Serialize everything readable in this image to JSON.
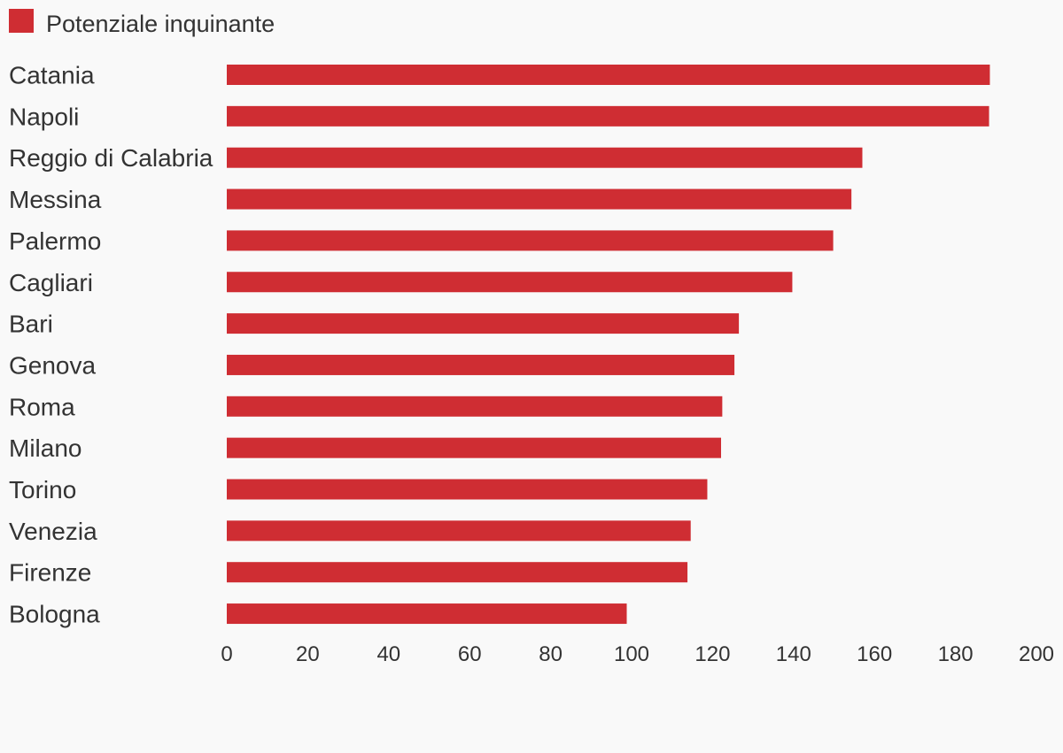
{
  "chart_data": {
    "type": "bar",
    "orientation": "horizontal",
    "categories": [
      "Catania",
      "Napoli",
      "Reggio di Calabria",
      "Messina",
      "Palermo",
      "Cagliari",
      "Bari",
      "Genova",
      "Roma",
      "Milano",
      "Torino",
      "Venezia",
      "Firenze",
      "Bologna"
    ],
    "series": [
      {
        "name": "Potenziale inquinante",
        "color": "#cf2d33",
        "values": [
          188.5,
          188.3,
          157,
          154.3,
          149.8,
          139.7,
          126.5,
          125.4,
          122.4,
          122.1,
          118.7,
          114.6,
          113.8,
          98.8
        ]
      }
    ],
    "xlim": [
      0,
      200
    ],
    "xticks": [
      0,
      20,
      40,
      60,
      80,
      100,
      120,
      140,
      160,
      180,
      200
    ],
    "title": "",
    "xlabel": "",
    "ylabel": "",
    "grid": false,
    "legend": "top-left"
  }
}
